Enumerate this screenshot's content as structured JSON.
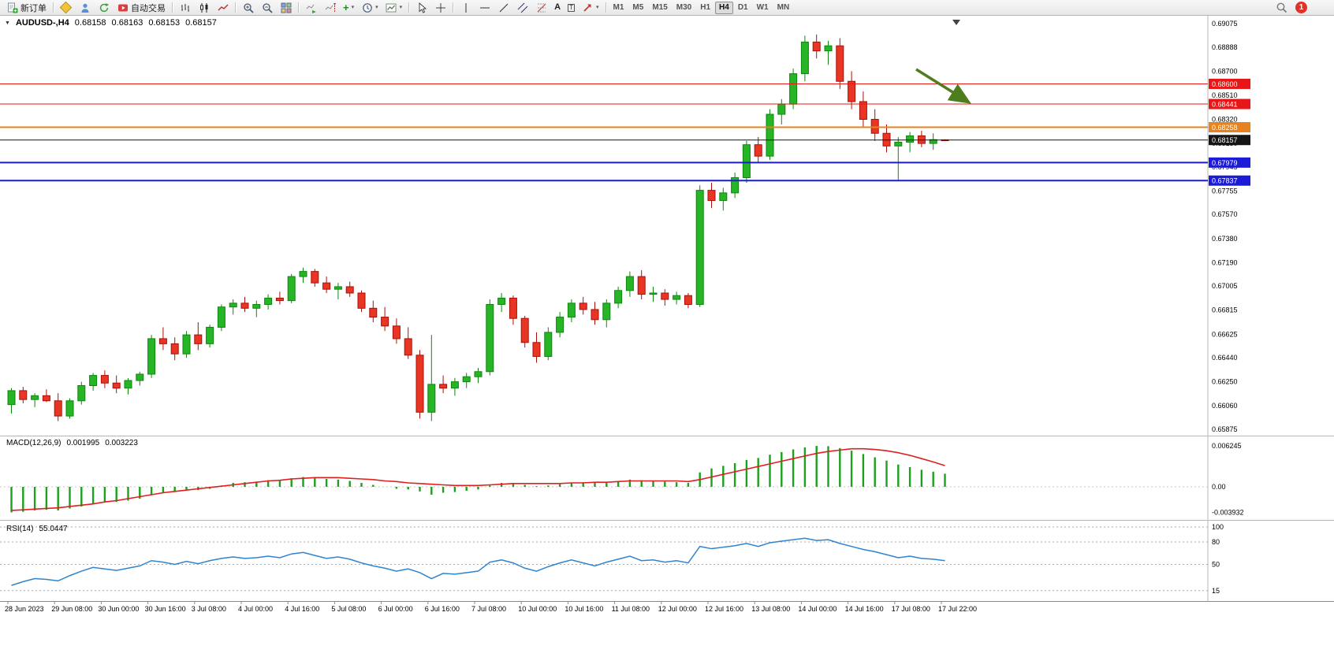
{
  "toolbar": {
    "new_order_label": "新订单",
    "autotrading_label": "自动交易",
    "timeframes": [
      {
        "label": "M1"
      },
      {
        "label": "M5"
      },
      {
        "label": "M15"
      },
      {
        "label": "M30"
      },
      {
        "label": "H1"
      },
      {
        "label": "H4"
      },
      {
        "label": "D1"
      },
      {
        "label": "W1"
      },
      {
        "label": "MN"
      }
    ],
    "active_timeframe": "H4",
    "notification_count": "1",
    "icon_glyphs": {
      "text_tool": "A",
      "label_tool": "T"
    }
  },
  "chart": {
    "title": {
      "symbol": "AUDUSD-,H4",
      "open": "0.68158",
      "high": "0.68163",
      "low": "0.68153",
      "close": "0.68157"
    },
    "price_axis_labels": [
      "0.69075",
      "0.68888",
      "0.68700",
      "0.68510",
      "0.68320",
      "0.68130",
      "0.67945",
      "0.67755",
      "0.67570",
      "0.67380",
      "0.67190",
      "0.67005",
      "0.66815",
      "0.66625",
      "0.66440",
      "0.66250",
      "0.66060",
      "0.65875"
    ],
    "hlines": [
      {
        "name": "resistance-line-1",
        "label": "0.68600",
        "value": 0.686,
        "color": "#e81717",
        "width": 1
      },
      {
        "name": "resistance-line-2",
        "label": "0.68441",
        "value": 0.68441,
        "color": "#e81717",
        "width": 1
      },
      {
        "name": "pivot-line",
        "label": "0.68258",
        "value": 0.68258,
        "color": "#e8821e",
        "width": 2
      },
      {
        "name": "bid-price-line",
        "label": "0.68157",
        "value": 0.68157,
        "color": "#151515",
        "width": 1
      },
      {
        "name": "support-line-1",
        "label": "0.67979",
        "value": 0.67979,
        "color": "#1c1cd8",
        "width": 2
      },
      {
        "name": "support-line-2",
        "label": "0.67837",
        "value": 0.67837,
        "color": "#1c1cd8",
        "width": 2
      }
    ],
    "time_axis": [
      "28 Jun 2023",
      "29 Jun 08:00",
      "30 Jun 00:00",
      "30 Jun 16:00",
      "3 Jul 08:00",
      "4 Jul 00:00",
      "4 Jul 16:00",
      "5 Jul 08:00",
      "6 Jul 00:00",
      "6 Jul 16:00",
      "7 Jul 08:00",
      "10 Jul 00:00",
      "10 Jul 16:00",
      "11 Jul 08:00",
      "12 Jul 00:00",
      "12 Jul 16:00",
      "13 Jul 08:00",
      "14 Jul 00:00",
      "14 Jul 16:00",
      "17 Jul 08:00",
      "17 Jul 22:00"
    ],
    "annotations": {
      "trend_arrow": {
        "color": "#4e7d1e",
        "direction": "down-right"
      }
    }
  },
  "chart_data": {
    "type": "candlestick",
    "symbol": "AUDUSD",
    "timeframe": "H4",
    "ylim": [
      0.65875,
      0.69075
    ],
    "candles": [
      [
        0.6607,
        0.662,
        0.66,
        0.6618
      ],
      [
        0.6618,
        0.6621,
        0.6608,
        0.6611
      ],
      [
        0.6611,
        0.6616,
        0.6605,
        0.6614
      ],
      [
        0.6614,
        0.6619,
        0.6609,
        0.661
      ],
      [
        0.661,
        0.6616,
        0.6594,
        0.6598
      ],
      [
        0.6598,
        0.6612,
        0.6596,
        0.661
      ],
      [
        0.661,
        0.6625,
        0.6607,
        0.6622
      ],
      [
        0.6622,
        0.6632,
        0.6618,
        0.663
      ],
      [
        0.663,
        0.6634,
        0.662,
        0.6624
      ],
      [
        0.6624,
        0.663,
        0.6616,
        0.662
      ],
      [
        0.662,
        0.6628,
        0.6615,
        0.6626
      ],
      [
        0.6626,
        0.6633,
        0.6622,
        0.6631
      ],
      [
        0.6631,
        0.6662,
        0.6628,
        0.6659
      ],
      [
        0.6659,
        0.6668,
        0.665,
        0.6655
      ],
      [
        0.6655,
        0.666,
        0.6642,
        0.6647
      ],
      [
        0.6647,
        0.6665,
        0.6644,
        0.6662
      ],
      [
        0.6662,
        0.6672,
        0.665,
        0.6655
      ],
      [
        0.6655,
        0.667,
        0.6652,
        0.6668
      ],
      [
        0.6668,
        0.6686,
        0.6665,
        0.6684
      ],
      [
        0.6684,
        0.669,
        0.6678,
        0.6687
      ],
      [
        0.6687,
        0.6692,
        0.668,
        0.6683
      ],
      [
        0.6683,
        0.6689,
        0.6676,
        0.6686
      ],
      [
        0.6686,
        0.6694,
        0.6682,
        0.6691
      ],
      [
        0.6691,
        0.6696,
        0.6686,
        0.6689
      ],
      [
        0.6689,
        0.671,
        0.6687,
        0.6708
      ],
      [
        0.6708,
        0.6715,
        0.6703,
        0.6712
      ],
      [
        0.6712,
        0.6714,
        0.67,
        0.6703
      ],
      [
        0.6703,
        0.6708,
        0.6695,
        0.6698
      ],
      [
        0.6698,
        0.6703,
        0.669,
        0.67
      ],
      [
        0.67,
        0.6704,
        0.6692,
        0.6695
      ],
      [
        0.6695,
        0.6697,
        0.668,
        0.6683
      ],
      [
        0.6683,
        0.6689,
        0.6672,
        0.6676
      ],
      [
        0.6676,
        0.6684,
        0.6665,
        0.6669
      ],
      [
        0.6669,
        0.6675,
        0.6655,
        0.6659
      ],
      [
        0.6659,
        0.6668,
        0.6643,
        0.6646
      ],
      [
        0.6646,
        0.665,
        0.6596,
        0.6601
      ],
      [
        0.6601,
        0.6662,
        0.6594,
        0.6623
      ],
      [
        0.6623,
        0.663,
        0.6616,
        0.662
      ],
      [
        0.662,
        0.6628,
        0.6614,
        0.6625
      ],
      [
        0.6625,
        0.6632,
        0.662,
        0.6629
      ],
      [
        0.6629,
        0.6636,
        0.6624,
        0.6633
      ],
      [
        0.6633,
        0.669,
        0.663,
        0.6686
      ],
      [
        0.6686,
        0.6695,
        0.668,
        0.6691
      ],
      [
        0.6691,
        0.6693,
        0.667,
        0.6675
      ],
      [
        0.6675,
        0.6677,
        0.6652,
        0.6656
      ],
      [
        0.6656,
        0.6664,
        0.664,
        0.6645
      ],
      [
        0.6645,
        0.6668,
        0.6642,
        0.6664
      ],
      [
        0.6664,
        0.668,
        0.666,
        0.6676
      ],
      [
        0.6676,
        0.669,
        0.6672,
        0.6687
      ],
      [
        0.6687,
        0.6692,
        0.6678,
        0.6682
      ],
      [
        0.6682,
        0.6688,
        0.667,
        0.6674
      ],
      [
        0.6674,
        0.669,
        0.6668,
        0.6687
      ],
      [
        0.6687,
        0.67,
        0.6683,
        0.6697
      ],
      [
        0.6697,
        0.6712,
        0.6692,
        0.6708
      ],
      [
        0.6708,
        0.6713,
        0.669,
        0.6694
      ],
      [
        0.6694,
        0.67,
        0.6688,
        0.6695
      ],
      [
        0.6695,
        0.6698,
        0.6685,
        0.669
      ],
      [
        0.669,
        0.6696,
        0.6686,
        0.6693
      ],
      [
        0.6693,
        0.6695,
        0.6683,
        0.6686
      ],
      [
        0.6686,
        0.678,
        0.6684,
        0.6776
      ],
      [
        0.6776,
        0.6782,
        0.6762,
        0.6768
      ],
      [
        0.6768,
        0.6778,
        0.676,
        0.6774
      ],
      [
        0.6774,
        0.679,
        0.677,
        0.6786
      ],
      [
        0.6786,
        0.6815,
        0.6782,
        0.6812
      ],
      [
        0.6812,
        0.6818,
        0.6798,
        0.6803
      ],
      [
        0.6803,
        0.684,
        0.68,
        0.6836
      ],
      [
        0.6836,
        0.6848,
        0.6828,
        0.6844
      ],
      [
        0.6844,
        0.6872,
        0.684,
        0.6868
      ],
      [
        0.6868,
        0.6898,
        0.6862,
        0.6893
      ],
      [
        0.6893,
        0.6899,
        0.688,
        0.6886
      ],
      [
        0.6886,
        0.6894,
        0.6875,
        0.689
      ],
      [
        0.689,
        0.6896,
        0.6856,
        0.6862
      ],
      [
        0.6862,
        0.687,
        0.684,
        0.6846
      ],
      [
        0.6846,
        0.6854,
        0.6826,
        0.6832
      ],
      [
        0.6832,
        0.684,
        0.6815,
        0.6821
      ],
      [
        0.6821,
        0.6828,
        0.6806,
        0.6811
      ],
      [
        0.6811,
        0.6818,
        0.6784,
        0.6814
      ],
      [
        0.6814,
        0.6822,
        0.6806,
        0.6819
      ],
      [
        0.6819,
        0.6823,
        0.681,
        0.6813
      ],
      [
        0.6813,
        0.6821,
        0.6808,
        0.6816
      ],
      [
        0.68158,
        0.68163,
        0.68153,
        0.68157
      ]
    ],
    "indicators": {
      "macd": {
        "label": "MACD(12,26,9)",
        "main_value": "0.001995",
        "signal_value": "0.003223",
        "ylim": [
          -0.003932,
          0.006245
        ],
        "scale_labels": [
          "0.006245",
          "0.00",
          "-0.003932"
        ],
        "histogram_color": "#1ba11b",
        "signal_color": "#e01f1f",
        "histogram": [
          -0.0039,
          -0.0038,
          -0.0036,
          -0.0035,
          -0.0036,
          -0.0033,
          -0.003,
          -0.0026,
          -0.0024,
          -0.0023,
          -0.0021,
          -0.0018,
          -0.0012,
          -0.0009,
          -0.0008,
          -0.0005,
          -0.0005,
          -0.0003,
          0.0002,
          0.0006,
          0.0007,
          0.0008,
          0.001,
          0.001,
          0.0013,
          0.0015,
          0.0014,
          0.0012,
          0.0011,
          0.0009,
          0.0006,
          0.0003,
          0.0,
          -0.0003,
          -0.0004,
          -0.0007,
          -0.0012,
          -0.0009,
          -0.0008,
          -0.0006,
          -0.0004,
          0.0002,
          0.0006,
          0.0006,
          0.0003,
          0.0001,
          0.0002,
          0.0004,
          0.0006,
          0.0007,
          0.0006,
          0.0007,
          0.0009,
          0.0011,
          0.001,
          0.0009,
          0.0008,
          0.0007,
          0.0006,
          0.0022,
          0.0028,
          0.0032,
          0.0036,
          0.0041,
          0.0044,
          0.0049,
          0.0053,
          0.0057,
          0.006,
          0.00624,
          0.0062,
          0.0059,
          0.0055,
          0.005,
          0.0045,
          0.004,
          0.0034,
          0.003,
          0.0026,
          0.0023,
          0.001995
        ],
        "signal": [
          -0.0036,
          -0.0035,
          -0.0034,
          -0.0033,
          -0.0032,
          -0.003,
          -0.0028,
          -0.0026,
          -0.0023,
          -0.0021,
          -0.0018,
          -0.0015,
          -0.0012,
          -0.0009,
          -0.0007,
          -0.0005,
          -0.0003,
          -0.0001,
          0.0001,
          0.0003,
          0.0005,
          0.0007,
          0.0009,
          0.001,
          0.0012,
          0.0013,
          0.0014,
          0.0014,
          0.0014,
          0.0013,
          0.0012,
          0.0011,
          0.0009,
          0.0008,
          0.0006,
          0.0005,
          0.0004,
          0.0003,
          0.0002,
          0.0002,
          0.0002,
          0.0003,
          0.0004,
          0.0005,
          0.0005,
          0.0005,
          0.0005,
          0.0005,
          0.0006,
          0.0006,
          0.0007,
          0.0007,
          0.0008,
          0.0009,
          0.0009,
          0.0009,
          0.0009,
          0.0009,
          0.0008,
          0.0011,
          0.0015,
          0.0019,
          0.0023,
          0.0027,
          0.0031,
          0.0035,
          0.0039,
          0.0043,
          0.0047,
          0.0051,
          0.0054,
          0.0056,
          0.0058,
          0.0058,
          0.0057,
          0.0055,
          0.0052,
          0.0048,
          0.0043,
          0.0038,
          0.003223
        ]
      },
      "rsi": {
        "label": "RSI(14)",
        "value": "55.0447",
        "levels": [
          "100",
          "80",
          "50",
          "15"
        ],
        "line_color": "#2f84d0",
        "series": [
          22,
          27,
          31,
          30,
          28,
          35,
          41,
          46,
          44,
          42,
          45,
          48,
          55,
          53,
          50,
          54,
          51,
          55,
          58,
          60,
          58,
          59,
          61,
          59,
          64,
          66,
          62,
          58,
          60,
          57,
          52,
          48,
          45,
          41,
          44,
          39,
          31,
          38,
          37,
          39,
          41,
          53,
          56,
          52,
          45,
          41,
          47,
          52,
          56,
          52,
          48,
          53,
          57,
          61,
          55,
          56,
          53,
          55,
          52,
          74,
          71,
          73,
          75,
          78,
          74,
          79,
          81,
          83,
          85,
          82,
          83,
          78,
          74,
          70,
          67,
          63,
          59,
          61,
          58,
          57,
          55.0447
        ]
      }
    }
  }
}
